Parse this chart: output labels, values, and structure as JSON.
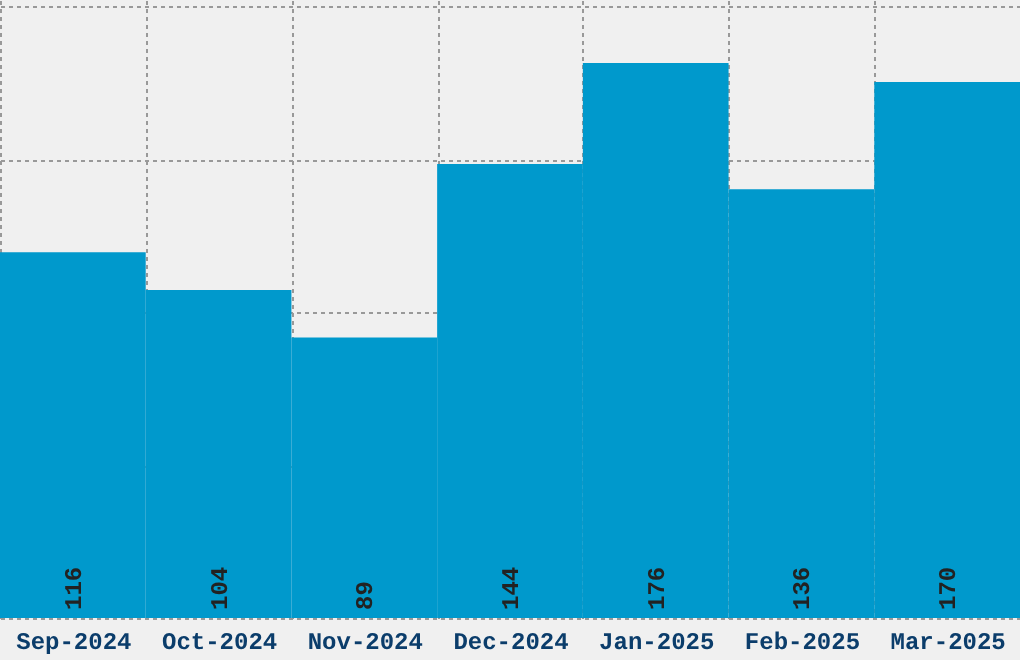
{
  "chart_data": {
    "type": "bar",
    "categories": [
      "Sep-2024",
      "Oct-2024",
      "Nov-2024",
      "Dec-2024",
      "Jan-2025",
      "Feb-2025",
      "Mar-2025"
    ],
    "values": [
      116,
      104,
      89,
      144,
      176,
      136,
      170
    ],
    "color": "#0099cc",
    "ylim": [
      0,
      196
    ],
    "yticks": [
      {
        "value": 0,
        "label": null
      },
      {
        "value": 48.5,
        "label": null
      },
      {
        "value": 97,
        "label": null
      },
      {
        "value": 145.5,
        "label": null
      },
      {
        "value": 194,
        "label": null
      }
    ],
    "grid": true,
    "data_labels": true,
    "tick_labels": "x"
  }
}
